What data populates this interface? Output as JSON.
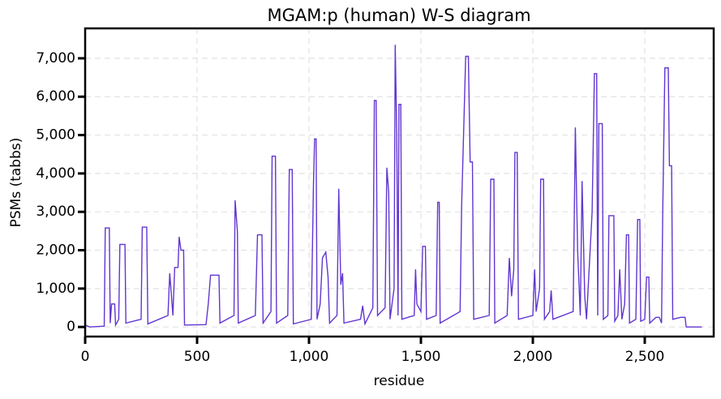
{
  "chart_data": {
    "type": "line",
    "title": "MGAM:p (human) W-S diagram",
    "x_label": "residue",
    "y_label": "PSMs (tabbs)",
    "xlim": [
      0,
      2808
    ],
    "ylim": [
      -250,
      7780
    ],
    "xticks": [
      0,
      500,
      {
        "value": 1000,
        "label": "1,000"
      },
      {
        "value": 1500,
        "label": "1,500"
      },
      {
        "value": 2000,
        "label": "2,000"
      },
      {
        "value": 2500,
        "label": "2,500"
      }
    ],
    "yticks": [
      0,
      {
        "value": 1000,
        "label": "1,000"
      },
      {
        "value": 2000,
        "label": "2,000"
      },
      {
        "value": 3000,
        "label": "3,000"
      },
      {
        "value": 4000,
        "label": "4,000"
      },
      {
        "value": 5000,
        "label": "5,000"
      },
      {
        "value": 6000,
        "label": "6,000"
      },
      {
        "value": 7000,
        "label": "7,000"
      }
    ],
    "grid": true,
    "color": "#6236d0",
    "x": [
      0,
      20,
      85,
      90,
      108,
      112,
      118,
      132,
      136,
      150,
      155,
      178,
      182,
      250,
      255,
      275,
      280,
      370,
      378,
      392,
      400,
      415,
      420,
      428,
      440,
      444,
      540,
      550,
      560,
      598,
      602,
      665,
      670,
      680,
      684,
      760,
      770,
      790,
      795,
      830,
      835,
      850,
      855,
      905,
      912,
      925,
      930,
      1010,
      1020,
      1025,
      1032,
      1036,
      1050,
      1060,
      1075,
      1085,
      1092,
      1125,
      1133,
      1142,
      1150,
      1156,
      1230,
      1240,
      1250,
      1285,
      1292,
      1300,
      1306,
      1340,
      1348,
      1356,
      1362,
      1380,
      1385,
      1392,
      1398,
      1402,
      1410,
      1415,
      1470,
      1476,
      1482,
      1500,
      1508,
      1520,
      1525,
      1568,
      1575,
      1582,
      1586,
      1675,
      1682,
      1700,
      1712,
      1720,
      1730,
      1736,
      1805,
      1812,
      1826,
      1830,
      1885,
      1895,
      1905,
      1915,
      1920,
      1930,
      1936,
      2000,
      2008,
      2015,
      2030,
      2035,
      2048,
      2052,
      2075,
      2082,
      2090,
      2180,
      2190,
      2200,
      2212,
      2220,
      2232,
      2240,
      2265,
      2275,
      2285,
      2290,
      2295,
      2310,
      2315,
      2335,
      2340,
      2362,
      2366,
      2380,
      2388,
      2398,
      2410,
      2418,
      2428,
      2432,
      2460,
      2468,
      2478,
      2482,
      2500,
      2508,
      2518,
      2522,
      2550,
      2565,
      2575,
      2580,
      2590,
      2605,
      2610,
      2620,
      2625,
      2660,
      2680,
      2685,
      2755
    ],
    "values": [
      50,
      0,
      20,
      2580,
      2580,
      100,
      600,
      600,
      50,
      200,
      2150,
      2150,
      100,
      200,
      2600,
      2600,
      80,
      300,
      1400,
      300,
      1550,
      1550,
      2350,
      2000,
      2000,
      50,
      60,
      600,
      1350,
      1350,
      100,
      300,
      3300,
      2500,
      100,
      300,
      2400,
      2400,
      100,
      400,
      4450,
      4450,
      100,
      300,
      4100,
      4100,
      80,
      200,
      3700,
      4900,
      4900,
      200,
      600,
      1800,
      1950,
      1300,
      100,
      300,
      3600,
      1100,
      1400,
      100,
      200,
      550,
      80,
      500,
      5900,
      5900,
      300,
      500,
      4150,
      3500,
      200,
      1000,
      7350,
      5000,
      300,
      5800,
      5800,
      200,
      300,
      1500,
      600,
      400,
      2100,
      2100,
      200,
      300,
      3250,
      3250,
      100,
      400,
      3150,
      7050,
      7050,
      4300,
      4300,
      200,
      300,
      3850,
      3850,
      100,
      300,
      1800,
      800,
      1500,
      4550,
      4550,
      200,
      300,
      1500,
      400,
      1000,
      3850,
      3850,
      200,
      400,
      950,
      200,
      400,
      5200,
      2000,
      300,
      3800,
      800,
      200,
      3000,
      6600,
      6600,
      300,
      5300,
      5300,
      200,
      300,
      2900,
      2900,
      150,
      300,
      1500,
      200,
      600,
      2400,
      2400,
      100,
      200,
      2800,
      2800,
      150,
      200,
      1300,
      1300,
      100,
      250,
      250,
      100,
      2900,
      6750,
      6750,
      4200,
      4200,
      200,
      250,
      250,
      0,
      0
    ]
  }
}
